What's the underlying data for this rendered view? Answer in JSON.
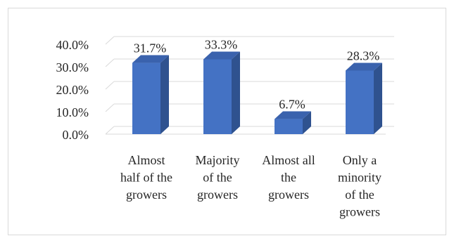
{
  "chart_data": {
    "type": "bar",
    "style": "3d-column",
    "categories": [
      [
        "Almost",
        "half of the",
        "growers"
      ],
      [
        "Majority",
        "of the",
        "growers"
      ],
      [
        "Almost all",
        "the",
        "growers"
      ],
      [
        "Only a",
        "minority",
        "of the",
        "growers"
      ]
    ],
    "values": [
      31.7,
      33.3,
      6.7,
      28.3
    ],
    "value_labels": [
      "31.7%",
      "33.3%",
      "6.7%",
      "28.3%"
    ],
    "y_ticks": [
      "0.0%",
      "10.0%",
      "20.0%",
      "30.0%",
      "40.0%"
    ],
    "ylim": [
      0,
      40
    ],
    "grid": true,
    "legend": "none",
    "colors": {
      "bar_front": "#4472c4",
      "bar_side": "#2f528f",
      "bar_top": "#3a62ad",
      "grid": "#d9d9d9"
    }
  }
}
